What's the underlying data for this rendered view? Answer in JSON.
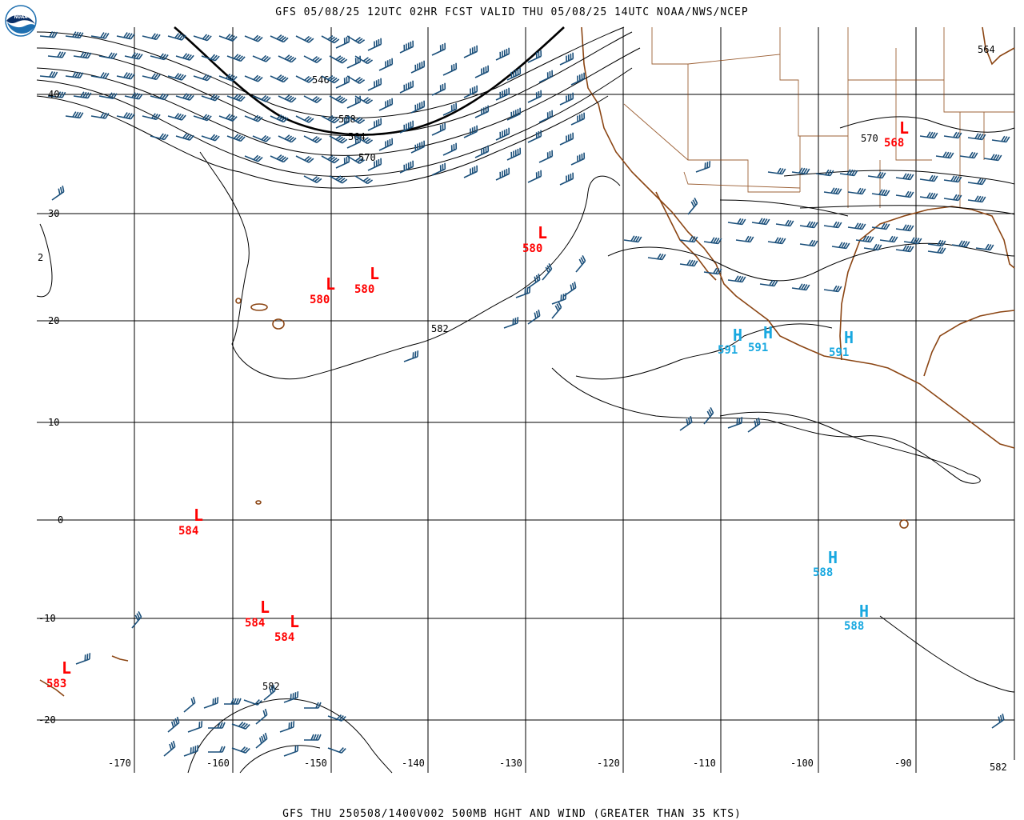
{
  "header": {
    "title": "GFS 05/08/25 12UTC 02HR FCST VALID THU 05/08/25 14UTC NOAA/NWS/NCEP",
    "logo_text": "NOAA"
  },
  "footer": {
    "caption": "GFS THU 250508/1400V002 500MB HGHT AND WIND (GREATER THAN 35 KTS)"
  },
  "axes": {
    "lon_ticks": [
      "-170",
      "-160",
      "-150",
      "-140",
      "-130",
      "-120",
      "-110",
      "-100",
      "-90"
    ],
    "lat_ticks": [
      "40",
      "30",
      "20",
      "10",
      "0",
      "-10",
      "-20"
    ],
    "edge_label_left": "2"
  },
  "contours": [
    "546",
    "558",
    "564",
    "570",
    "570",
    "582",
    "582",
    "582",
    "564",
    "582"
  ],
  "pressure_centers": [
    {
      "type": "L",
      "value": "580",
      "color": "#ff0000"
    },
    {
      "type": "L",
      "value": "580",
      "color": "#ff0000"
    },
    {
      "type": "L",
      "value": "580",
      "color": "#ff0000"
    },
    {
      "type": "L",
      "value": "568",
      "color": "#ff0000"
    },
    {
      "type": "L",
      "value": "584",
      "color": "#ff0000"
    },
    {
      "type": "L",
      "value": "584",
      "color": "#ff0000"
    },
    {
      "type": "L",
      "value": "584",
      "color": "#ff0000"
    },
    {
      "type": "L",
      "value": "583",
      "color": "#ff0000"
    },
    {
      "type": "H",
      "value": "591",
      "color": "#18a8e0"
    },
    {
      "type": "H",
      "value": "591",
      "color": "#18a8e0"
    },
    {
      "type": "H",
      "value": "591",
      "color": "#18a8e0"
    },
    {
      "type": "H",
      "value": "588",
      "color": "#18a8e0"
    },
    {
      "type": "H",
      "value": "588",
      "color": "#18a8e0"
    }
  ],
  "colors": {
    "wind_barb": "#1a4f7a",
    "coastline": "#8b4513",
    "low": "#ff0000",
    "high": "#18a8e0"
  }
}
